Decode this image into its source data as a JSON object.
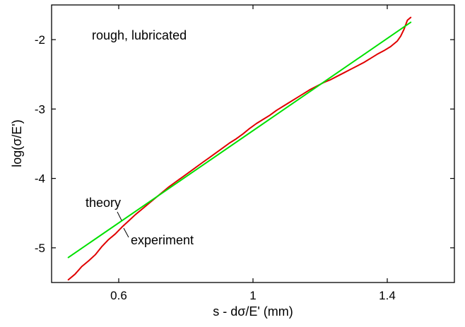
{
  "chart_data": {
    "type": "line",
    "xlabel": "s - dσ/E' (mm)",
    "ylabel": "log(σ/E')",
    "xlim": [
      0.4,
      1.6
    ],
    "ylim": [
      -5.5,
      -1.5
    ],
    "x_ticks": [
      0.6,
      1,
      1.4
    ],
    "x_tick_labels": [
      "0.6",
      "1",
      "1.4"
    ],
    "y_ticks": [
      -5,
      -4,
      -3,
      -2
    ],
    "y_tick_labels": [
      "-5",
      "-4",
      "-3",
      "-2"
    ],
    "grid": false,
    "legend": "none",
    "annotations": {
      "label": "rough, lubricated",
      "theory": "theory",
      "experiment": "experiment"
    },
    "series": [
      {
        "name": "theory",
        "color": "#00e000",
        "x": [
          0.45,
          1.47
        ],
        "y": [
          -5.14,
          -1.75
        ]
      },
      {
        "name": "experiment",
        "color": "#e00000",
        "x": [
          0.45,
          0.47,
          0.49,
          0.51,
          0.53,
          0.55,
          0.57,
          0.59,
          0.61,
          0.63,
          0.65,
          0.67,
          0.69,
          0.71,
          0.73,
          0.75,
          0.77,
          0.79,
          0.81,
          0.83,
          0.85,
          0.87,
          0.89,
          0.91,
          0.93,
          0.95,
          0.97,
          0.99,
          1.01,
          1.03,
          1.05,
          1.07,
          1.09,
          1.11,
          1.13,
          1.15,
          1.17,
          1.19,
          1.21,
          1.23,
          1.25,
          1.27,
          1.29,
          1.31,
          1.33,
          1.35,
          1.37,
          1.39,
          1.41,
          1.43,
          1.44,
          1.45,
          1.46,
          1.47
        ],
        "y": [
          -5.46,
          -5.38,
          -5.27,
          -5.19,
          -5.1,
          -4.98,
          -4.88,
          -4.8,
          -4.7,
          -4.61,
          -4.52,
          -4.44,
          -4.36,
          -4.28,
          -4.2,
          -4.12,
          -4.05,
          -3.98,
          -3.91,
          -3.84,
          -3.77,
          -3.7,
          -3.63,
          -3.56,
          -3.49,
          -3.43,
          -3.36,
          -3.28,
          -3.21,
          -3.15,
          -3.09,
          -3.02,
          -2.96,
          -2.9,
          -2.84,
          -2.78,
          -2.72,
          -2.67,
          -2.62,
          -2.58,
          -2.53,
          -2.48,
          -2.43,
          -2.38,
          -2.33,
          -2.27,
          -2.21,
          -2.16,
          -2.1,
          -2.02,
          -1.95,
          -1.85,
          -1.72,
          -1.68
        ]
      }
    ]
  }
}
